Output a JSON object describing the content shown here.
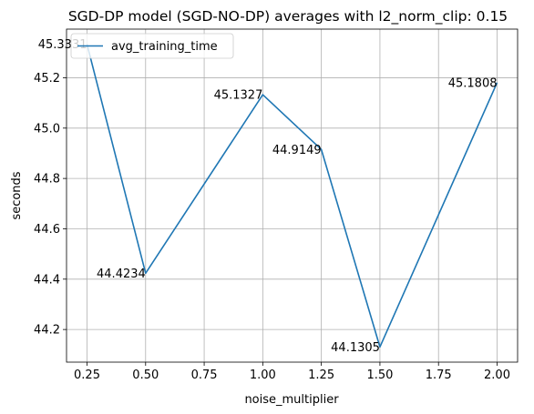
{
  "chart_data": {
    "type": "line",
    "title": "SGD-DP model (SGD-NO-DP) averages with l2_norm_clip: 0.15",
    "xlabel": "noise_multiplier",
    "ylabel": "seconds",
    "x": [
      0.25,
      0.5,
      1.0,
      1.25,
      1.5,
      2.0
    ],
    "series": [
      {
        "name": "avg_training_time",
        "color": "#1f77b4",
        "values": [
          45.3331,
          44.4234,
          45.1327,
          44.9149,
          44.1305,
          45.1808
        ],
        "labels": [
          "45.3331",
          "44.4234",
          "45.1327",
          "44.9149",
          "44.1305",
          "45.1808"
        ]
      }
    ],
    "xlim": [
      0.1625,
      2.0875
    ],
    "ylim": [
      44.07037,
      45.39323
    ],
    "xticks": [
      0.25,
      0.5,
      0.75,
      1.0,
      1.25,
      1.5,
      1.75,
      2.0
    ],
    "xtick_labels": [
      "0.25",
      "0.50",
      "0.75",
      "1.00",
      "1.25",
      "1.50",
      "1.75",
      "2.00"
    ],
    "yticks": [
      44.2,
      44.4,
      44.6,
      44.8,
      45.0,
      45.2
    ],
    "ytick_labels": [
      "44.2",
      "44.4",
      "44.6",
      "44.8",
      "45.0",
      "45.2"
    ],
    "grid": true,
    "legend_position": "top-left"
  }
}
